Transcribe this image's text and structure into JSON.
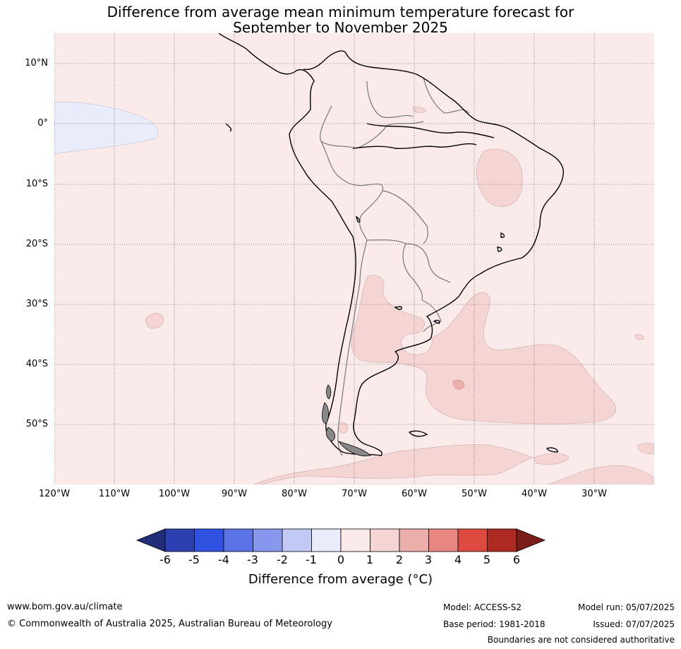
{
  "title_line1": "Difference from average mean minimum temperature forecast for",
  "title_line2": "September to November 2025",
  "lat_labels": [
    "10°N",
    "0°",
    "10°S",
    "20°S",
    "30°S",
    "40°S",
    "50°S"
  ],
  "lon_labels": [
    "120°W",
    "110°W",
    "100°W",
    "90°W",
    "80°W",
    "70°W",
    "60°W",
    "50°W",
    "40°W",
    "30°W"
  ],
  "colorbar": {
    "ticks": [
      "-6",
      "-5",
      "-4",
      "-3",
      "-2",
      "-1",
      "0",
      "1",
      "2",
      "3",
      "4",
      "5",
      "6"
    ],
    "colors": [
      "#1f2d7a",
      "#2b3fb0",
      "#3052e0",
      "#5b73e6",
      "#8798ec",
      "#c2c9f4",
      "#e9edfb",
      "#fbeaea",
      "#f5d5d4",
      "#ecaeaa",
      "#e88681",
      "#dc4a40",
      "#ac2a22",
      "#7a1c18"
    ],
    "label": "Difference from average ($^\\circ$C)",
    "label_display": "Difference from average (°C)"
  },
  "footer": {
    "url": "www.bom.gov.au/climate",
    "copyright": "© Commonwealth of Australia 2025, Australian Bureau of Meteorology",
    "model": "Model: ACCESS-S2",
    "base_period": "Base period: 1981-2018",
    "model_run": "Model run: 05/07/2025",
    "issued": "Issued: 07/07/2025",
    "disclaimer": "Boundaries are not considered authoritative"
  },
  "map": {
    "background_color": "#fbeaea",
    "cooler_color": "#e9edfb",
    "warmer_color": "#f5d5d4",
    "warmest_color": "#ecaeaa",
    "lon_range": [
      -120,
      -20
    ],
    "lat_range": [
      -60,
      15
    ]
  }
}
